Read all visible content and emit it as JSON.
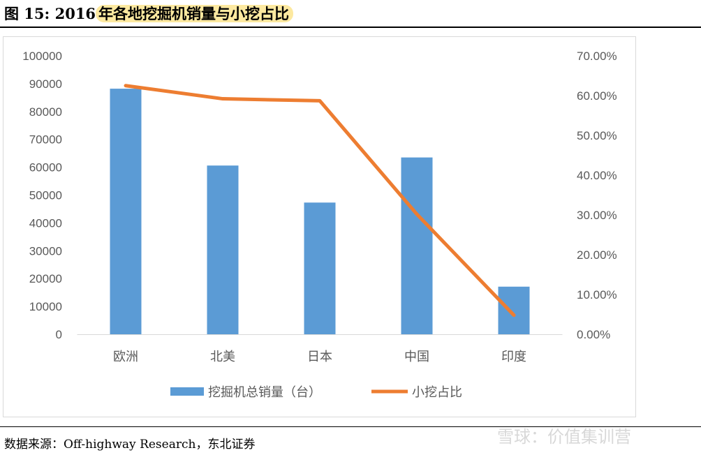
{
  "figure_label": "图  15:  2016",
  "figure_title": "年各地挖掘机销量与小挖占比",
  "source": "数据来源：Off-highway Research，东北证券",
  "watermark": "雪球：价值集训营",
  "chart_data": {
    "type": "bar+line",
    "categories": [
      "欧洲",
      "北美",
      "日本",
      "中国",
      "印度"
    ],
    "series": [
      {
        "name": "挖掘机总销量（台）",
        "type": "bar",
        "axis": "left",
        "color": "#5b9bd5",
        "values": [
          88200,
          60600,
          47300,
          63500,
          17100
        ]
      },
      {
        "name": "小挖占比",
        "type": "line",
        "axis": "right",
        "color": "#ed7d31",
        "values": [
          0.625,
          0.592,
          0.587,
          0.302,
          0.048
        ]
      }
    ],
    "left_axis": {
      "min": 0,
      "max": 100000,
      "step": 10000,
      "ticks": [
        "0",
        "10000",
        "20000",
        "30000",
        "40000",
        "50000",
        "60000",
        "70000",
        "80000",
        "90000",
        "100000"
      ]
    },
    "right_axis": {
      "min": 0,
      "max": 0.7,
      "step": 0.1,
      "ticks": [
        "0.00%",
        "10.00%",
        "20.00%",
        "30.00%",
        "40.00%",
        "50.00%",
        "60.00%",
        "70.00%"
      ]
    },
    "legend_position": "bottom",
    "grid": false
  }
}
